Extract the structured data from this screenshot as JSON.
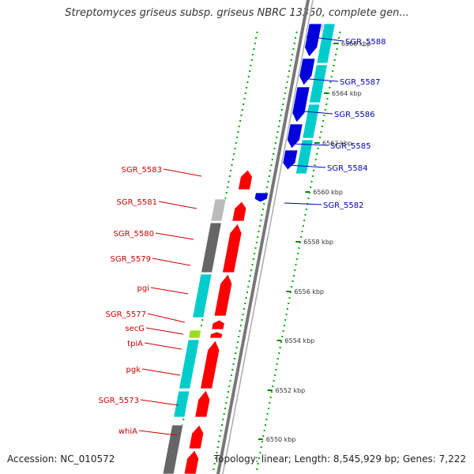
{
  "title": "Streptomyces griseus subsp. griseus NBRC 13350, complete gen...",
  "accession": "Accession: NC_010572",
  "topology": "Topology: linear; Length: 8,545,929 bp; Genes: 7,222",
  "colors": {
    "forward_gene": "#ff0000",
    "reverse_gene": "#0000dd",
    "forward_label": "#cc0000",
    "reverse_label": "#0000bb",
    "cds_cyan": "#00cccc",
    "ruler_tick": "#008800"
  },
  "ruler": [
    {
      "label": "6566 kbp"
    },
    {
      "label": "6564 kbp"
    },
    {
      "label": "6562 kbp"
    },
    {
      "label": "6560 kbp"
    },
    {
      "label": "6558 kbp"
    },
    {
      "label": "6556 kbp"
    },
    {
      "label": "6554 kbp"
    },
    {
      "label": "6552 kbp"
    },
    {
      "label": "6550 kbp"
    }
  ],
  "reverse_genes": [
    {
      "name": "SGR_5588"
    },
    {
      "name": "SGR_5587"
    },
    {
      "name": "SGR_5586"
    },
    {
      "name": "SGR_5585"
    },
    {
      "name": "SGR_5584"
    },
    {
      "name": "SGR_5582"
    }
  ],
  "forward_genes": [
    {
      "name": "SGR_5583"
    },
    {
      "name": "SGR_5581"
    },
    {
      "name": "SGR_5580"
    },
    {
      "name": "SGR_5579"
    },
    {
      "name": "pgi"
    },
    {
      "name": "SGR_5577"
    },
    {
      "name": "secG"
    },
    {
      "name": "tpiA"
    },
    {
      "name": "pgk"
    },
    {
      "name": "SGR_5573"
    },
    {
      "name": "whiA"
    }
  ]
}
